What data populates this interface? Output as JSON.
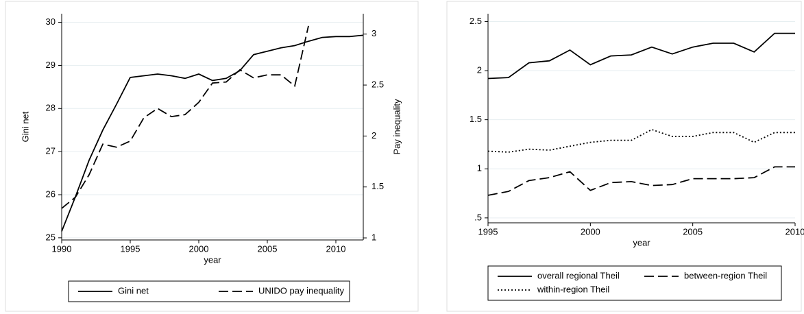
{
  "chart_data": [
    {
      "type": "line",
      "x": [
        1990,
        1991,
        1992,
        1993,
        1994,
        1995,
        1996,
        1997,
        1998,
        1999,
        2000,
        2001,
        2002,
        2003,
        2004,
        2005,
        2006,
        2007,
        2008,
        2009,
        2010,
        2011,
        2012
      ],
      "xlabel": "year",
      "ylabel": "Gini net",
      "y2label": "Pay inequality",
      "xlim": [
        1990,
        2012
      ],
      "xticks": [
        1990,
        1995,
        2000,
        2005,
        2010
      ],
      "ylim": [
        24.95,
        30.2
      ],
      "yticks": [
        25,
        26,
        27,
        28,
        29,
        30
      ],
      "y2lim": [
        0.98,
        3.2
      ],
      "y2ticks": [
        1,
        1.5,
        2,
        2.5,
        3
      ],
      "grid": true,
      "series": [
        {
          "name": "Gini net",
          "color": "#000000",
          "style": "solid",
          "values": [
            25.15,
            25.95,
            26.8,
            27.5,
            28.1,
            28.72,
            28.76,
            28.8,
            28.76,
            28.7,
            28.8,
            28.65,
            28.7,
            28.88,
            29.25,
            29.33,
            29.41,
            29.46,
            29.56,
            29.65,
            29.67,
            29.67,
            29.7
          ]
        },
        {
          "name": "UNIDO pay inequality",
          "color": "#000000",
          "style": "dashed",
          "axis": "y2",
          "values": [
            1.29,
            1.4,
            1.62,
            1.92,
            1.89,
            1.95,
            2.18,
            2.27,
            2.19,
            2.21,
            2.33,
            2.52,
            2.53,
            2.65,
            2.57,
            2.6,
            2.6,
            2.49,
            3.08,
            null,
            null,
            null,
            null
          ]
        }
      ]
    },
    {
      "type": "line",
      "x": [
        1995,
        1996,
        1997,
        1998,
        1999,
        2000,
        2001,
        2002,
        2003,
        2004,
        2005,
        2006,
        2007,
        2008,
        2009,
        2010
      ],
      "xlabel": "year",
      "xlim": [
        1995,
        2010
      ],
      "xticks": [
        1995,
        2000,
        2005,
        2010
      ],
      "ylim": [
        0.45,
        2.58
      ],
      "yticks": [
        {
          "value": 0.5,
          "label": ".5"
        },
        1,
        1.5,
        2,
        2.5
      ],
      "grid": true,
      "series": [
        {
          "name": "overall regional Theil",
          "color": "#000000",
          "style": "solid",
          "values": [
            1.92,
            1.93,
            2.08,
            2.1,
            2.21,
            2.06,
            2.15,
            2.16,
            2.24,
            2.17,
            2.24,
            2.28,
            2.28,
            2.19,
            2.38,
            2.38
          ]
        },
        {
          "name": "between-region Theil",
          "color": "#000000",
          "style": "dashed",
          "values": [
            0.73,
            0.77,
            0.88,
            0.91,
            0.97,
            0.78,
            0.86,
            0.87,
            0.83,
            0.84,
            0.9,
            0.9,
            0.9,
            0.91,
            1.02,
            1.02
          ]
        },
        {
          "name": "within-region Theil",
          "color": "#000000",
          "style": "dotted",
          "values": [
            1.18,
            1.17,
            1.2,
            1.19,
            1.23,
            1.27,
            1.29,
            1.29,
            1.4,
            1.33,
            1.33,
            1.37,
            1.37,
            1.27,
            1.37,
            1.37
          ]
        }
      ]
    }
  ]
}
